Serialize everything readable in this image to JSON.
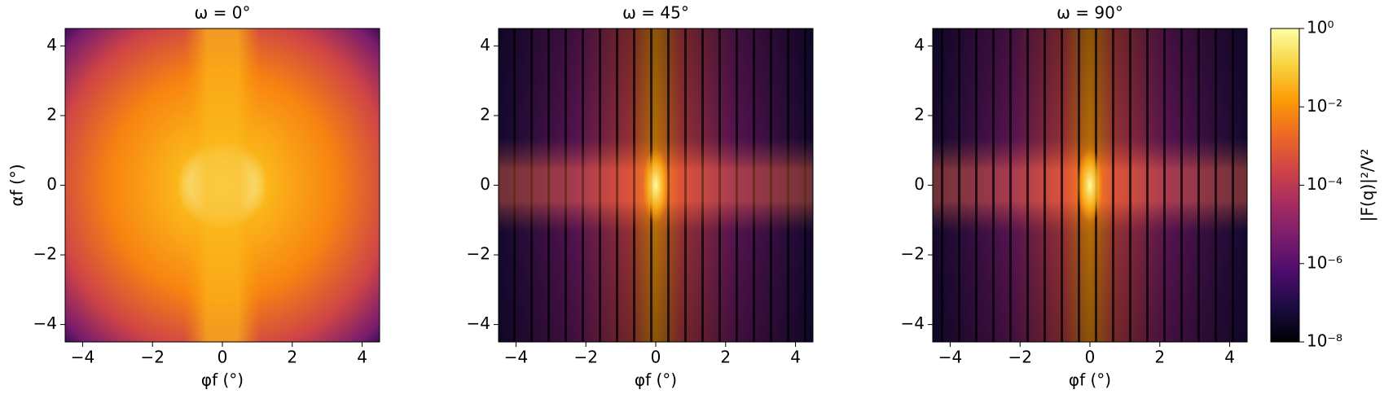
{
  "chart_data": [
    {
      "type": "heatmap",
      "title": "ω = 0°",
      "xlabel": "φf (°)",
      "ylabel": "αf (°)",
      "xlim": [
        -4.5,
        4.5
      ],
      "ylim": [
        -4.5,
        4.5
      ],
      "xticks": [
        {
          "value": -4,
          "label": "−4"
        },
        {
          "value": -2,
          "label": "−2"
        },
        0,
        2,
        4
      ],
      "yticks": [
        {
          "value": -4,
          "label": "−4"
        },
        {
          "value": -2,
          "label": "−2"
        },
        0,
        2,
        4
      ]
    },
    {
      "type": "heatmap",
      "title": "ω = 45°",
      "xlabel": "φf (°)",
      "xlim": [
        -4.5,
        4.5
      ],
      "ylim": [
        -4.5,
        4.5
      ],
      "xticks": [
        {
          "value": -4,
          "label": "−4"
        },
        {
          "value": -2,
          "label": "−2"
        },
        0,
        2,
        4
      ],
      "yticks": [
        {
          "value": -4,
          "label": "−4"
        },
        {
          "value": -2,
          "label": "−2"
        },
        0,
        2,
        4
      ]
    },
    {
      "type": "heatmap",
      "title": "ω = 90°",
      "xlabel": "φf (°)",
      "xlim": [
        -4.5,
        4.5
      ],
      "ylim": [
        -4.5,
        4.5
      ],
      "xticks": [
        {
          "value": -4,
          "label": "−4"
        },
        {
          "value": -2,
          "label": "−2"
        },
        0,
        2,
        4
      ],
      "yticks": [
        {
          "value": -4,
          "label": "−4"
        },
        {
          "value": -2,
          "label": "−2"
        },
        0,
        2,
        4
      ]
    }
  ],
  "colorbar": {
    "label": "|F(q)|²/V²",
    "scale": "log",
    "lim": [
      1e-08,
      1
    ],
    "ticks": [
      {
        "value": 1e-08,
        "label": "10⁻⁸"
      },
      {
        "value": 1e-06,
        "label": "10⁻⁶"
      },
      {
        "value": 0.0001,
        "label": "10⁻⁴"
      },
      {
        "value": 0.01,
        "label": "10⁻²"
      },
      {
        "value": 1,
        "label": "10⁰"
      }
    ]
  }
}
